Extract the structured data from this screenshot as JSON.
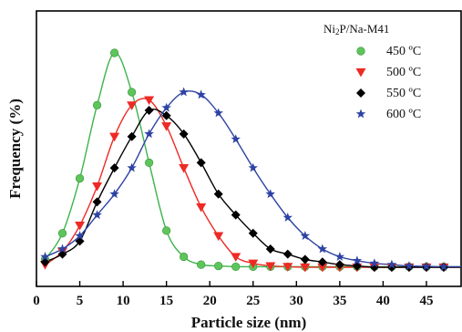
{
  "chart_data": {
    "type": "line",
    "title": "",
    "annotation": "Ni2P/Na-M41",
    "xlabel": "Particle size (nm)",
    "ylabel": "Frequency (%)",
    "xlim": [
      0,
      49
    ],
    "ylim": [
      0,
      100
    ],
    "xticks": [
      0,
      5,
      10,
      15,
      20,
      25,
      30,
      35,
      40,
      45
    ],
    "y_tick_labels": false,
    "grid": false,
    "legend_position": "top-right",
    "series": [
      {
        "name": "450 ºC",
        "color": "#5cc65a",
        "line_color": "#3cb44b",
        "marker": "circle",
        "x": [
          1,
          3,
          5,
          7,
          9,
          11,
          13,
          15,
          17,
          19,
          21,
          23,
          25,
          27,
          29,
          31,
          33,
          35,
          37,
          39,
          41,
          43,
          45,
          47,
          49
        ],
        "y": [
          3,
          13,
          34,
          62,
          82,
          67,
          40,
          14,
          4,
          1,
          0.5,
          0.2,
          0.2,
          0.2,
          0.2,
          0.2,
          0.2,
          0.2,
          0.2,
          0.2,
          0.2,
          0.2,
          0.2,
          0.2,
          0.2
        ]
      },
      {
        "name": "500 ºC",
        "color": "#ee2a24",
        "line_color": "#ee2a24",
        "marker": "triangle-down",
        "x": [
          1,
          3,
          5,
          7,
          9,
          11,
          13,
          15,
          17,
          19,
          21,
          23,
          25,
          27,
          29,
          31,
          33,
          35,
          37,
          39,
          41,
          43,
          45,
          47,
          49
        ],
        "y": [
          1,
          6,
          16,
          31,
          50,
          62,
          64,
          54,
          38,
          23,
          12,
          4,
          1.5,
          0.5,
          0.2,
          0,
          0,
          0,
          0,
          0,
          0,
          0,
          0,
          0,
          0
        ]
      },
      {
        "name": "550 ºC",
        "color": "#000000",
        "line_color": "#000000",
        "marker": "diamond",
        "x": [
          1,
          3,
          5,
          7,
          9,
          11,
          13,
          15,
          17,
          19,
          21,
          23,
          25,
          27,
          29,
          31,
          33,
          35,
          37,
          39,
          41,
          43,
          45,
          47,
          49
        ],
        "y": [
          2,
          5,
          10,
          25,
          38,
          50,
          60,
          58,
          51,
          40,
          28,
          20,
          13,
          7,
          5,
          3,
          2,
          1,
          0.5,
          0,
          0,
          0,
          0,
          0,
          0
        ]
      },
      {
        "name": "600 ºC",
        "color": "#2e43a4",
        "line_color": "#2e43a4",
        "marker": "star",
        "x": [
          1,
          3,
          5,
          7,
          9,
          11,
          13,
          15,
          17,
          19,
          21,
          23,
          25,
          27,
          29,
          31,
          33,
          35,
          37,
          39,
          41,
          43,
          45,
          47,
          49
        ],
        "y": [
          4,
          7,
          12,
          20,
          28,
          38,
          51,
          61,
          67,
          66,
          59,
          49,
          38,
          28,
          19,
          12,
          7,
          4,
          2.5,
          1.5,
          1,
          0.5,
          0.3,
          0.2,
          0.2
        ]
      }
    ]
  }
}
